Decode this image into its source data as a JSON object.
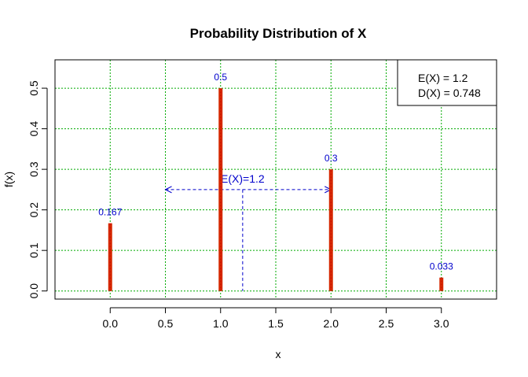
{
  "chart_data": {
    "type": "bar",
    "title": "Probability Distribution of X",
    "xlabel": "x",
    "ylabel": "f(x)",
    "xlim": [
      -0.5,
      3.5
    ],
    "ylim": [
      -0.02,
      0.57
    ],
    "grid": true,
    "x_ticks": [
      "0.0",
      "0.5",
      "1.0",
      "1.5",
      "2.0",
      "2.5",
      "3.0"
    ],
    "y_ticks": [
      "0.0",
      "0.1",
      "0.2",
      "0.3",
      "0.4",
      "0.5"
    ],
    "points": [
      {
        "x": 0,
        "value": 0.167,
        "label": "0.167"
      },
      {
        "x": 1,
        "value": 0.5,
        "label": "0.5"
      },
      {
        "x": 2,
        "value": 0.3,
        "label": "0.3"
      },
      {
        "x": 3,
        "value": 0.033,
        "label": "0.033"
      }
    ],
    "expected_value": {
      "x": 1.2,
      "label": "E(X)=1.2",
      "arrow_from": 0.5,
      "arrow_to": 2.0,
      "arrow_y": 0.25
    },
    "legend": {
      "position": "top-right",
      "lines": [
        "E(X) = 1.2",
        "D(X) = 0.748"
      ]
    },
    "colors": {
      "bars": "#d62800",
      "bar_ends": "#c00000",
      "labels": "#0000cc",
      "grid": "#00aa00",
      "annotation": "#0000cc"
    }
  }
}
